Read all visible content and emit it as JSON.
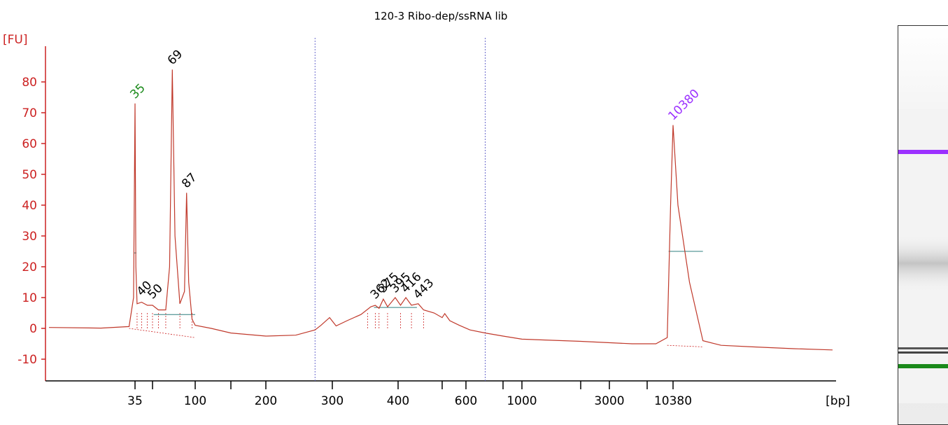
{
  "chart_data": {
    "type": "line",
    "title": "120-3 Ribo-dep/ssRNA lib",
    "ylabel": "[FU]",
    "xlabel": "[bp]",
    "ylim": [
      -15,
      90
    ],
    "y_ticks": [
      -10,
      0,
      10,
      20,
      30,
      40,
      50,
      60,
      70,
      80
    ],
    "x_ticks": [
      {
        "label": "35",
        "value": 35
      },
      {
        "label": "100",
        "value": 100
      },
      {
        "label": "200",
        "value": 200
      },
      {
        "label": "300",
        "value": 300
      },
      {
        "label": "400",
        "value": 400
      },
      {
        "label": "600",
        "value": 600
      },
      {
        "label": "1000",
        "value": 1000
      },
      {
        "label": "3000",
        "value": 3000
      },
      {
        "label": "10380",
        "value": 10380
      }
    ],
    "x_minor_ticks": [
      50,
      150,
      500,
      700,
      2000,
      7000
    ],
    "x_axis_note": "Non-linear bp axis (electropherogram migration time mapped to bp)",
    "region_markers_bp": [
      270,
      650
    ],
    "lower_marker": {
      "label": "35",
      "bp": 35,
      "fu": 73,
      "color": "#1a8a1a"
    },
    "upper_marker": {
      "label": "10380",
      "bp": 10380,
      "fu": 66,
      "color": "#9b30ff"
    },
    "peak_labels": [
      {
        "label": "69",
        "bp": 69,
        "fu": 84
      },
      {
        "label": "87",
        "bp": 87,
        "fu": 44
      },
      {
        "label": "40",
        "bp": 40,
        "fu": 9
      },
      {
        "label": "50",
        "bp": 50,
        "fu": 8
      },
      {
        "label": "362",
        "bp": 362,
        "fu": 8
      },
      {
        "label": "375",
        "bp": 375,
        "fu": 10
      },
      {
        "label": "395",
        "bp": 395,
        "fu": 10
      },
      {
        "label": "416",
        "bp": 416,
        "fu": 10
      },
      {
        "label": "443",
        "bp": 443,
        "fu": 8
      }
    ],
    "series": [
      {
        "color": "#c0392b",
        "points": [
          [
            15,
            0.3
          ],
          [
            25,
            0.1
          ],
          [
            33,
            0.6
          ],
          [
            34.5,
            10
          ],
          [
            35,
            73
          ],
          [
            35.6,
            20
          ],
          [
            36.5,
            8
          ],
          [
            40,
            8.5
          ],
          [
            45,
            7.5
          ],
          [
            50,
            7.5
          ],
          [
            55,
            6
          ],
          [
            62,
            6
          ],
          [
            66,
            20
          ],
          [
            69,
            84
          ],
          [
            72,
            30
          ],
          [
            78,
            8
          ],
          [
            84,
            12
          ],
          [
            87,
            44
          ],
          [
            90,
            15
          ],
          [
            95,
            3
          ],
          [
            100,
            1
          ],
          [
            120,
            0
          ],
          [
            150,
            -1.5
          ],
          [
            200,
            -2.5
          ],
          [
            240,
            -2.2
          ],
          [
            270,
            -0.5
          ],
          [
            280,
            1
          ],
          [
            295,
            3.5
          ],
          [
            305,
            0.8
          ],
          [
            320,
            2.5
          ],
          [
            340,
            4.5
          ],
          [
            355,
            7
          ],
          [
            362,
            7.5
          ],
          [
            368,
            6.5
          ],
          [
            375,
            9.5
          ],
          [
            382,
            7
          ],
          [
            395,
            10
          ],
          [
            405,
            7.5
          ],
          [
            416,
            10
          ],
          [
            428,
            7.5
          ],
          [
            443,
            8
          ],
          [
            455,
            6
          ],
          [
            480,
            5
          ],
          [
            500,
            3.5
          ],
          [
            510,
            4.8
          ],
          [
            530,
            2.5
          ],
          [
            570,
            1
          ],
          [
            610,
            -0.5
          ],
          [
            650,
            -1.5
          ],
          [
            700,
            -2.5
          ],
          [
            1000,
            -3.5
          ],
          [
            2000,
            -4.2
          ],
          [
            5000,
            -5
          ],
          [
            8000,
            -5
          ],
          [
            9500,
            -3
          ],
          [
            10000,
            40
          ],
          [
            10380,
            66
          ],
          [
            10700,
            40
          ],
          [
            11500,
            15
          ],
          [
            12500,
            -4
          ],
          [
            14000,
            -5.5
          ],
          [
            17000,
            -6
          ],
          [
            22000,
            -6.6
          ],
          [
            28000,
            -7
          ]
        ]
      }
    ]
  }
}
